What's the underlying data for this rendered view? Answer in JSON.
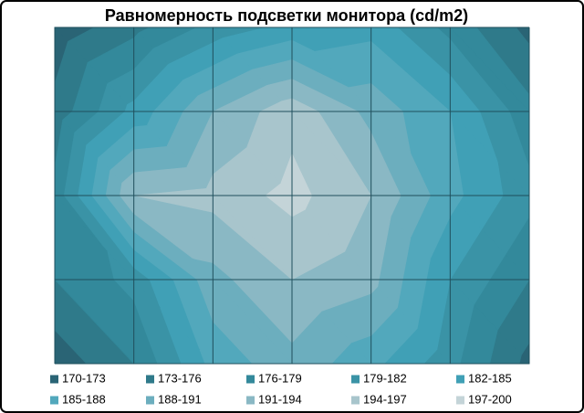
{
  "chart_data": {
    "type": "contour",
    "title": "Равномерность  подсветки монитора (cd/m2)",
    "values": [
      [
        171,
        175,
        180,
        183,
        184,
        178,
        172
      ],
      [
        174,
        183,
        191,
        196,
        190,
        185,
        177
      ],
      [
        177,
        194,
        195,
        198,
        194,
        186,
        180
      ],
      [
        176,
        180,
        190,
        194,
        192,
        182,
        176
      ],
      [
        171,
        176,
        186,
        190,
        186,
        180,
        172
      ]
    ],
    "series": [
      {
        "name": "170-173",
        "color": "#2a6475",
        "range": [
          170,
          173
        ]
      },
      {
        "name": "173-176",
        "color": "#2f7a8a",
        "range": [
          173,
          176
        ]
      },
      {
        "name": "176-179",
        "color": "#33899b",
        "range": [
          176,
          179
        ]
      },
      {
        "name": "179-182",
        "color": "#3a93a6",
        "range": [
          179,
          182
        ]
      },
      {
        "name": "182-185",
        "color": "#40a0b6",
        "range": [
          182,
          185
        ]
      },
      {
        "name": "185-188",
        "color": "#52a8bc",
        "range": [
          185,
          188
        ]
      },
      {
        "name": "188-191",
        "color": "#6caebe",
        "range": [
          188,
          191
        ]
      },
      {
        "name": "191-194",
        "color": "#8ab8c4",
        "range": [
          191,
          194
        ]
      },
      {
        "name": "194-197",
        "color": "#a8c5cc",
        "range": [
          194,
          197
        ]
      },
      {
        "name": "197-200",
        "color": "#c4d4d8",
        "range": [
          197,
          200
        ]
      }
    ],
    "grid": true
  }
}
